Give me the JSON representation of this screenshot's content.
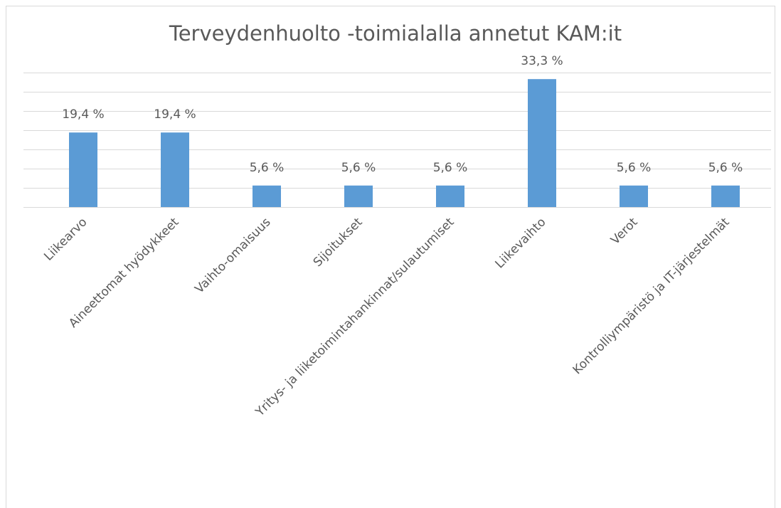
{
  "chart_data": {
    "type": "bar",
    "title": "Terveydenhuolto -toimialalla annetut KAM:it",
    "categories": [
      "Liikearvo",
      "Aineettomat hyödykkeet",
      "Vaihto-omaisuus",
      "Sijoitukset",
      "Yritys- ja liiketoimintahankinnat/sulautumiset",
      "Liikevaihto",
      "Verot",
      "Kontrolliympäristö ja IT-järjestelmät"
    ],
    "values": [
      19.4,
      19.4,
      5.6,
      5.6,
      5.6,
      33.3,
      5.6,
      5.6
    ],
    "value_labels": [
      "19,4 %",
      "19,4 %",
      "5,6 %",
      "5,6 %",
      "5,6 %",
      "33,3 %",
      "5,6 %",
      "5,6 %"
    ],
    "color": "#5b9bd5",
    "ylim": [
      0,
      35
    ],
    "yticks": [
      0,
      5,
      10,
      15,
      20,
      25,
      30,
      35
    ],
    "grid": true
  }
}
